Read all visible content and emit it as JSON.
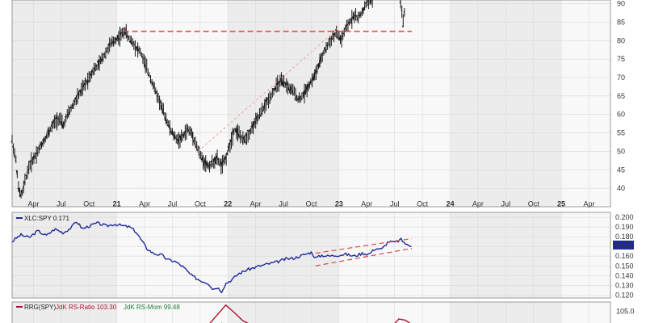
{
  "colors": {
    "price": "#1a1a1a",
    "ratio": "#1f2a9a",
    "support": "#e04040",
    "trend": "#f0a0a0",
    "rs_ratio": "#b01030",
    "rs_mom": "#1a7a3a",
    "band_a": "#ececec",
    "band_b": "#f8f8f8",
    "grid": "#d8d8d8",
    "label_bg": "#1f2a9a"
  },
  "chart_data": [
    {
      "type": "bar",
      "name": "price",
      "ylim": [
        35,
        91
      ],
      "yticks": [
        40,
        45,
        50,
        55,
        60,
        65,
        70,
        75,
        80,
        85,
        90
      ],
      "points": [
        [
          0,
          53
        ],
        [
          2,
          47
        ],
        [
          3,
          40
        ],
        [
          4,
          38
        ],
        [
          5,
          39
        ],
        [
          6,
          42
        ],
        [
          7,
          44
        ],
        [
          8,
          46
        ],
        [
          10,
          48
        ],
        [
          12,
          50
        ],
        [
          14,
          52
        ],
        [
          16,
          54
        ],
        [
          18,
          56
        ],
        [
          20,
          58
        ],
        [
          22,
          59
        ],
        [
          24,
          57
        ],
        [
          26,
          60
        ],
        [
          28,
          62
        ],
        [
          30,
          64
        ],
        [
          32,
          66
        ],
        [
          34,
          68
        ],
        [
          36,
          70
        ],
        [
          38,
          72
        ],
        [
          40,
          73
        ],
        [
          42,
          75
        ],
        [
          44,
          77
        ],
        [
          46,
          79
        ],
        [
          48,
          80
        ],
        [
          50,
          81
        ],
        [
          52,
          82
        ],
        [
          53,
          83
        ],
        [
          54,
          81
        ],
        [
          56,
          80
        ],
        [
          58,
          78
        ],
        [
          60,
          77
        ],
        [
          62,
          74
        ],
        [
          64,
          71
        ],
        [
          66,
          68
        ],
        [
          68,
          65
        ],
        [
          70,
          62
        ],
        [
          72,
          59
        ],
        [
          74,
          56
        ],
        [
          76,
          54
        ],
        [
          78,
          53
        ],
        [
          80,
          54
        ],
        [
          82,
          56
        ],
        [
          84,
          55
        ],
        [
          86,
          52
        ],
        [
          88,
          49
        ],
        [
          90,
          47
        ],
        [
          92,
          46
        ],
        [
          94,
          47
        ],
        [
          96,
          48
        ],
        [
          98,
          46
        ],
        [
          100,
          48
        ],
        [
          102,
          52
        ],
        [
          104,
          56
        ],
        [
          106,
          55
        ],
        [
          108,
          53
        ],
        [
          110,
          54
        ],
        [
          112,
          56
        ],
        [
          114,
          58
        ],
        [
          116,
          60
        ],
        [
          118,
          62
        ],
        [
          120,
          64
        ],
        [
          122,
          66
        ],
        [
          124,
          68
        ],
        [
          126,
          69
        ],
        [
          128,
          68
        ],
        [
          130,
          67
        ],
        [
          132,
          66
        ],
        [
          134,
          64
        ],
        [
          136,
          65
        ],
        [
          138,
          67
        ],
        [
          140,
          69
        ],
        [
          142,
          71
        ],
        [
          144,
          74
        ],
        [
          146,
          77
        ],
        [
          148,
          79
        ],
        [
          150,
          81
        ],
        [
          152,
          82
        ],
        [
          154,
          80
        ],
        [
          156,
          83
        ],
        [
          158,
          85
        ],
        [
          160,
          87
        ],
        [
          162,
          86
        ],
        [
          164,
          88
        ],
        [
          166,
          90
        ],
        [
          168,
          91
        ],
        [
          182,
          90
        ],
        [
          183,
          85
        ],
        [
          184,
          89
        ]
      ],
      "support": {
        "value": 82.5,
        "x_start": 52,
        "x_end": 187
      },
      "trendline": {
        "x_start": 87,
        "y_start": 50,
        "x_end": 152,
        "y_end": 83
      }
    },
    {
      "type": "line",
      "name": "XLC:SPY",
      "ylim": [
        0.117,
        0.205
      ],
      "yticks": [
        0.12,
        0.13,
        0.14,
        0.15,
        0.16,
        0.17,
        0.18,
        0.19,
        0.2
      ],
      "tick_labels": [
        "0.120",
        "0.130",
        "0.140",
        "0.150",
        "0.160",
        "0.170",
        "0.180",
        "0.190",
        "0.200"
      ],
      "points": [
        [
          0,
          0.175
        ],
        [
          4,
          0.182
        ],
        [
          8,
          0.179
        ],
        [
          12,
          0.186
        ],
        [
          16,
          0.181
        ],
        [
          20,
          0.188
        ],
        [
          24,
          0.184
        ],
        [
          28,
          0.19
        ],
        [
          30,
          0.196
        ],
        [
          33,
          0.188
        ],
        [
          36,
          0.191
        ],
        [
          40,
          0.194
        ],
        [
          44,
          0.191
        ],
        [
          48,
          0.193
        ],
        [
          52,
          0.191
        ],
        [
          55,
          0.19
        ],
        [
          58,
          0.185
        ],
        [
          60,
          0.178
        ],
        [
          63,
          0.168
        ],
        [
          66,
          0.163
        ],
        [
          70,
          0.161
        ],
        [
          73,
          0.156
        ],
        [
          76,
          0.155
        ],
        [
          80,
          0.149
        ],
        [
          84,
          0.14
        ],
        [
          88,
          0.135
        ],
        [
          92,
          0.132
        ],
        [
          94,
          0.126
        ],
        [
          96,
          0.128
        ],
        [
          98,
          0.124
        ],
        [
          100,
          0.132
        ],
        [
          103,
          0.136
        ],
        [
          106,
          0.142
        ],
        [
          110,
          0.146
        ],
        [
          113,
          0.148
        ],
        [
          116,
          0.15
        ],
        [
          120,
          0.152
        ],
        [
          124,
          0.154
        ],
        [
          128,
          0.157
        ],
        [
          132,
          0.158
        ],
        [
          136,
          0.161
        ],
        [
          140,
          0.164
        ],
        [
          142,
          0.158
        ],
        [
          145,
          0.161
        ],
        [
          148,
          0.16
        ],
        [
          152,
          0.161
        ],
        [
          156,
          0.162
        ],
        [
          160,
          0.16
        ],
        [
          164,
          0.163
        ],
        [
          167,
          0.162
        ],
        [
          170,
          0.168
        ],
        [
          173,
          0.167
        ],
        [
          176,
          0.175
        ],
        [
          179,
          0.174
        ],
        [
          182,
          0.177
        ],
        [
          185,
          0.171
        ],
        [
          187,
          0.171
        ]
      ],
      "last_label": "0.171",
      "channel": [
        {
          "x_start": 142,
          "y_start": 0.163,
          "x_end": 187,
          "y_end": 0.178
        },
        {
          "x_start": 142,
          "y_start": 0.15,
          "x_end": 187,
          "y_end": 0.168
        }
      ]
    },
    {
      "type": "line",
      "name": "RRG(SPY)",
      "ylim": [
        100,
        108
      ],
      "yticks": [
        105
      ],
      "tick_labels": [
        "105.0"
      ],
      "series": [
        {
          "name": "JdK RS-Ratio 103.30",
          "points": [
            [
              92,
              100.5
            ],
            [
              96,
              103.8
            ],
            [
              100,
              107.0
            ],
            [
              104,
              104.5
            ],
            [
              108,
              101.8
            ],
            [
              112,
              100.4
            ]
          ]
        },
        {
          "name": "JdK RS-Mom 99.48",
          "points": [
            [
              96,
              98.8
            ],
            [
              98,
              101.0
            ],
            [
              101,
              100.4
            ]
          ]
        },
        {
          "name": "JdK RS-Ratio 103.30",
          "points": [
            [
              178,
              100.2
            ],
            [
              181,
              102.4
            ],
            [
              184,
              102.0
            ],
            [
              187,
              100.6
            ]
          ]
        }
      ]
    }
  ],
  "x_axis": {
    "ticks": [
      {
        "x": 10,
        "label": "Apr",
        "major": false
      },
      {
        "x": 23,
        "label": "Jul",
        "major": false
      },
      {
        "x": 36,
        "label": "Oct",
        "major": false
      },
      {
        "x": 49,
        "label": "21",
        "major": true
      },
      {
        "x": 62,
        "label": "Apr",
        "major": false
      },
      {
        "x": 75,
        "label": "Jul",
        "major": false
      },
      {
        "x": 88,
        "label": "Oct",
        "major": false
      },
      {
        "x": 101,
        "label": "22",
        "major": true
      },
      {
        "x": 114,
        "label": "Apr",
        "major": false
      },
      {
        "x": 127,
        "label": "Jul",
        "major": false
      },
      {
        "x": 140,
        "label": "Oct",
        "major": false
      },
      {
        "x": 153,
        "label": "23",
        "major": true
      },
      {
        "x": 166,
        "label": "Apr",
        "major": false
      },
      {
        "x": 179,
        "label": "Jul",
        "major": false
      },
      {
        "x": 192,
        "label": "Oct",
        "major": false
      },
      {
        "x": 205,
        "label": "24",
        "major": true
      },
      {
        "x": 218,
        "label": "Apr",
        "major": false
      },
      {
        "x": 231,
        "label": "Jul",
        "major": false
      },
      {
        "x": 244,
        "label": "Oct",
        "major": false
      },
      {
        "x": 257,
        "label": "25",
        "major": true
      },
      {
        "x": 270,
        "label": "Apr",
        "major": false
      }
    ]
  },
  "legend": {
    "ratio": "XLC:SPY 0.171",
    "rrg_name": "RRG(SPY)",
    "rs_ratio": "JdK RS-Ratio 103.30",
    "rs_mom": "JdK RS-Mom 99.48"
  }
}
